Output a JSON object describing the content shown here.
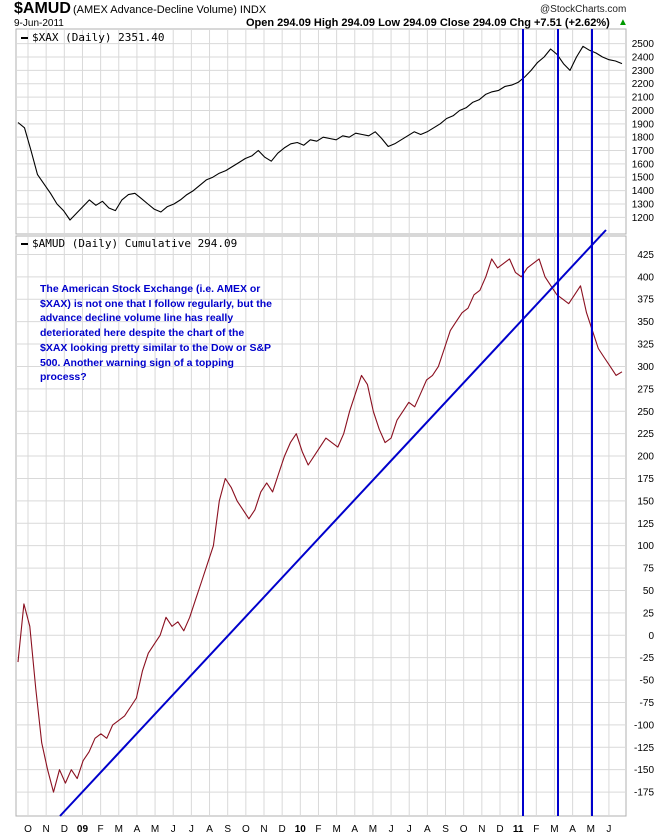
{
  "header": {
    "symbol": "$AMUD",
    "description": "(AMEX Advance-Decline Volume) INDX",
    "date": "9-Jun-2011",
    "quote": "Open 294.09  High 294.09  Low 294.09  Close 294.09  Chg +7.51 (+2.62%)",
    "up_glyph": "▲",
    "copyright": "@StockCharts.com"
  },
  "colors": {
    "price_line": "#000000",
    "breadth_line": "#8b1020",
    "trend_line": "#0000cc",
    "annotation": "#0000cc",
    "grid": "#d9d9d9",
    "up_arrow": "#009900"
  },
  "annotation": {
    "lines": [
      "The American Stock Exchange (i.e. AMEX or",
      "$XAX) is not one that I follow regularly, but the",
      "advance decline volume line has really",
      "deteriorated here despite the chart of the",
      "$XAX looking pretty similar to the Dow or S&P",
      "500. Another warning sign of a topping",
      "process?"
    ]
  },
  "chart_data": [
    {
      "type": "line",
      "legend": "$XAX (Daily) 2351.40",
      "ylim": [
        1120,
        2520
      ],
      "yticks": [
        1200,
        1300,
        1400,
        1500,
        1600,
        1700,
        1800,
        1900,
        2000,
        2100,
        2200,
        2300,
        2400,
        2500
      ],
      "grid": true,
      "series": [
        {
          "values": [
            1910,
            1870,
            1700,
            1520,
            1450,
            1380,
            1300,
            1250,
            1180,
            1230,
            1280,
            1330,
            1290,
            1320,
            1270,
            1250,
            1330,
            1370,
            1380,
            1340,
            1300,
            1260,
            1240,
            1280,
            1300,
            1330,
            1370,
            1400,
            1440,
            1480,
            1500,
            1530,
            1550,
            1580,
            1610,
            1640,
            1660,
            1700,
            1650,
            1620,
            1680,
            1720,
            1750,
            1760,
            1740,
            1780,
            1770,
            1800,
            1790,
            1780,
            1810,
            1800,
            1830,
            1820,
            1810,
            1840,
            1790,
            1730,
            1750,
            1780,
            1810,
            1840,
            1820,
            1840,
            1870,
            1900,
            1940,
            1960,
            2000,
            2020,
            2060,
            2080,
            2120,
            2140,
            2150,
            2180,
            2190,
            2210,
            2250,
            2300,
            2360,
            2400,
            2460,
            2420,
            2350,
            2300,
            2400,
            2480,
            2450,
            2430,
            2400,
            2380,
            2370,
            2351
          ]
        }
      ]
    },
    {
      "type": "line",
      "legend": "$AMUD (Daily) Cumulative 294.09",
      "ylim": [
        -195,
        440
      ],
      "yticks": [
        -175,
        -150,
        -125,
        -100,
        -75,
        -50,
        -25,
        0,
        25,
        50,
        75,
        100,
        125,
        150,
        175,
        200,
        225,
        250,
        275,
        300,
        325,
        350,
        375,
        400,
        425
      ],
      "grid": true,
      "x_month_labels": [
        "O",
        "N",
        "D",
        "09",
        "F",
        "M",
        "A",
        "M",
        "J",
        "J",
        "A",
        "S",
        "O",
        "N",
        "D",
        "10",
        "F",
        "M",
        "A",
        "M",
        "J",
        "J",
        "A",
        "S",
        "O",
        "N",
        "D",
        "11",
        "F",
        "M",
        "A",
        "M",
        "J"
      ],
      "series": [
        {
          "values": [
            -30,
            35,
            10,
            -60,
            -120,
            -150,
            -175,
            -150,
            -165,
            -150,
            -160,
            -140,
            -130,
            -115,
            -110,
            -115,
            -100,
            -95,
            -90,
            -80,
            -70,
            -40,
            -20,
            -10,
            0,
            20,
            10,
            15,
            5,
            20,
            40,
            60,
            80,
            100,
            150,
            175,
            165,
            150,
            140,
            130,
            140,
            160,
            170,
            160,
            180,
            200,
            215,
            225,
            205,
            190,
            200,
            210,
            220,
            215,
            210,
            225,
            250,
            270,
            290,
            280,
            250,
            230,
            215,
            220,
            240,
            250,
            260,
            255,
            270,
            285,
            290,
            300,
            320,
            340,
            350,
            360,
            365,
            380,
            385,
            400,
            420,
            410,
            415,
            420,
            405,
            400,
            410,
            415,
            420,
            400,
            390,
            380,
            375,
            370,
            380,
            390,
            360,
            340,
            320,
            310,
            300,
            290,
            294
          ]
        }
      ]
    }
  ]
}
